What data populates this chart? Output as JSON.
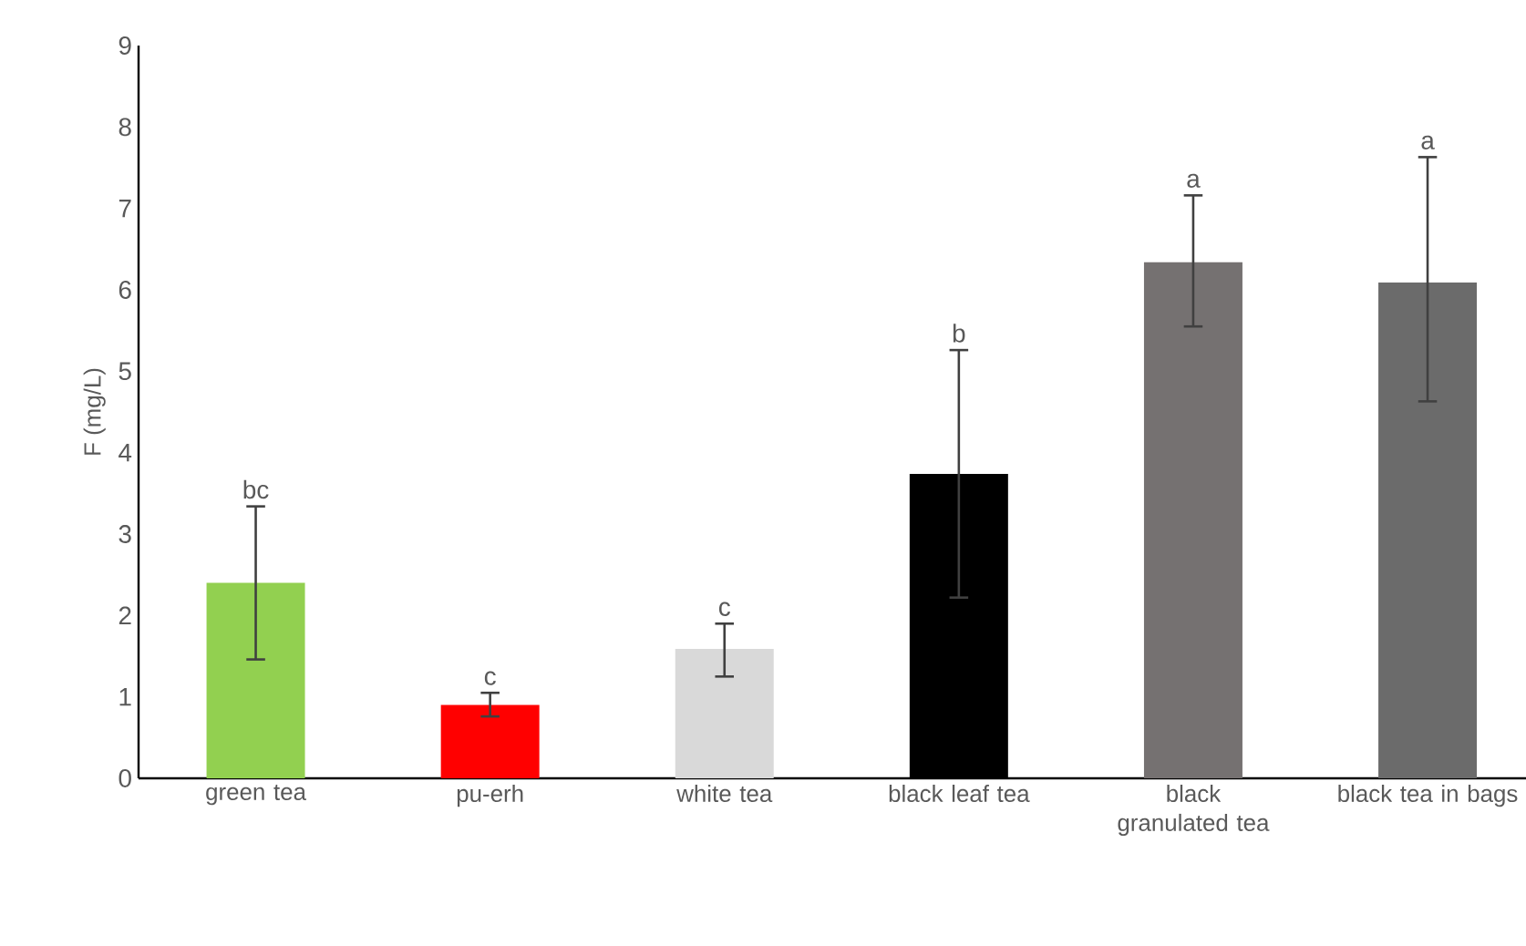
{
  "chart_data": {
    "type": "bar",
    "ylabel": "F (mg/L)",
    "categories": [
      "green tea",
      "pu-erh",
      "white tea",
      "black leaf tea",
      "black granulated tea",
      "black tea in bags"
    ],
    "values": [
      2.4,
      0.9,
      1.59,
      3.74,
      6.34,
      6.09
    ],
    "colors": [
      "#92d050",
      "#ff0000",
      "#d9d9d9",
      "#000000",
      "#757171",
      "#6b6b6b"
    ],
    "errors": [
      [
        1.46,
        3.34
      ],
      [
        0.76,
        1.05
      ],
      [
        1.25,
        1.9
      ],
      [
        2.22,
        5.26
      ],
      [
        5.55,
        7.16
      ],
      [
        4.63,
        7.63
      ]
    ],
    "ylim": [
      0,
      9
    ],
    "yticks": [
      0,
      1,
      2,
      3,
      4,
      5,
      6,
      7,
      8,
      9
    ],
    "annotations": [
      "bc",
      "c",
      "c",
      "b",
      "a",
      "a"
    ]
  }
}
